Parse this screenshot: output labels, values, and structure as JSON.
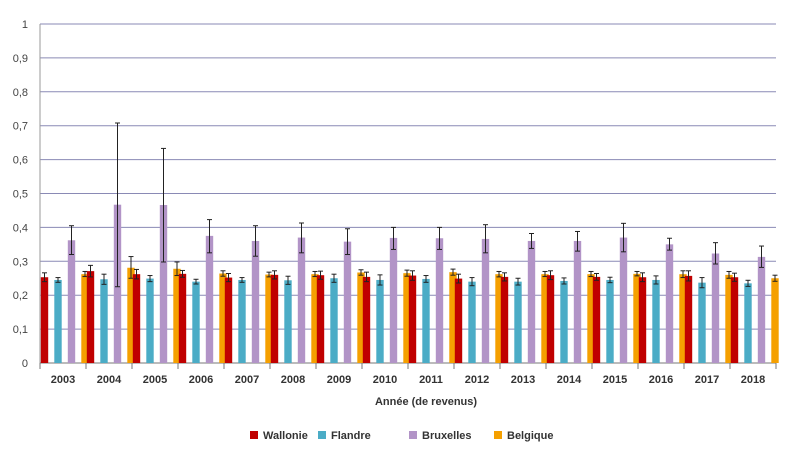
{
  "chart_data": {
    "type": "bar",
    "title": "",
    "xlabel": "Année (de revenus)",
    "ylabel": "",
    "ylim": [
      0,
      1
    ],
    "yticks": [
      "0",
      "0,1",
      "0,2",
      "0,3",
      "0,4",
      "0,5",
      "0,6",
      "0,7",
      "0,8",
      "0,9",
      "1"
    ],
    "grid": true,
    "legend_position": "bottom",
    "categories": [
      "2003",
      "2004",
      "2005",
      "2006",
      "2007",
      "2008",
      "2009",
      "2010",
      "2011",
      "2012",
      "2013",
      "2014",
      "2015",
      "2016",
      "2017",
      "2018"
    ],
    "series": [
      {
        "name": "Wallonie",
        "color": "#c00000",
        "values": [
          0.253,
          0.271,
          0.262,
          0.263,
          0.252,
          0.26,
          0.259,
          0.254,
          0.258,
          0.249,
          0.254,
          0.259,
          0.254,
          0.253,
          0.257,
          0.253
        ],
        "err_low": [
          0.24,
          0.254,
          0.248,
          0.253,
          0.24,
          0.248,
          0.247,
          0.24,
          0.244,
          0.236,
          0.242,
          0.246,
          0.244,
          0.24,
          0.242,
          0.241
        ],
        "err_high": [
          0.266,
          0.288,
          0.276,
          0.273,
          0.264,
          0.272,
          0.271,
          0.268,
          0.272,
          0.262,
          0.266,
          0.272,
          0.264,
          0.266,
          0.272,
          0.265
        ]
      },
      {
        "name": "Flandre",
        "color": "#4bacc6",
        "values": [
          0.245,
          0.247,
          0.249,
          0.24,
          0.245,
          0.244,
          0.25,
          0.245,
          0.248,
          0.24,
          0.24,
          0.242,
          0.245,
          0.245,
          0.237,
          0.235
        ],
        "err_low": [
          0.238,
          0.232,
          0.24,
          0.233,
          0.238,
          0.232,
          0.238,
          0.23,
          0.238,
          0.228,
          0.23,
          0.233,
          0.237,
          0.233,
          0.222,
          0.226
        ],
        "err_high": [
          0.252,
          0.262,
          0.258,
          0.247,
          0.252,
          0.256,
          0.262,
          0.26,
          0.258,
          0.252,
          0.25,
          0.251,
          0.253,
          0.257,
          0.252,
          0.244
        ]
      },
      {
        "name": "Bruxelles",
        "color": "#b294c7",
        "values": [
          0.362,
          0.467,
          0.466,
          0.375,
          0.36,
          0.37,
          0.358,
          0.369,
          0.368,
          0.366,
          0.36,
          0.36,
          0.37,
          0.35,
          0.323,
          0.313
        ],
        "err_low": [
          0.32,
          0.225,
          0.298,
          0.325,
          0.315,
          0.325,
          0.32,
          0.335,
          0.335,
          0.325,
          0.338,
          0.33,
          0.328,
          0.333,
          0.292,
          0.282
        ],
        "err_high": [
          0.405,
          0.708,
          0.633,
          0.423,
          0.405,
          0.413,
          0.396,
          0.4,
          0.4,
          0.408,
          0.382,
          0.388,
          0.412,
          0.368,
          0.355,
          0.345
        ]
      },
      {
        "name": "Belgique",
        "color": "#f5a000",
        "values": [
          0.262,
          0.281,
          0.278,
          0.264,
          0.261,
          0.262,
          0.267,
          0.265,
          0.268,
          0.262,
          0.262,
          0.262,
          0.263,
          0.262,
          0.26,
          0.25
        ],
        "err_low": [
          0.255,
          0.25,
          0.258,
          0.256,
          0.254,
          0.255,
          0.259,
          0.256,
          0.259,
          0.254,
          0.255,
          0.255,
          0.257,
          0.252,
          0.25,
          0.241
        ],
        "err_high": [
          0.27,
          0.314,
          0.298,
          0.272,
          0.268,
          0.27,
          0.275,
          0.274,
          0.277,
          0.27,
          0.27,
          0.27,
          0.27,
          0.272,
          0.27,
          0.259
        ]
      }
    ]
  }
}
